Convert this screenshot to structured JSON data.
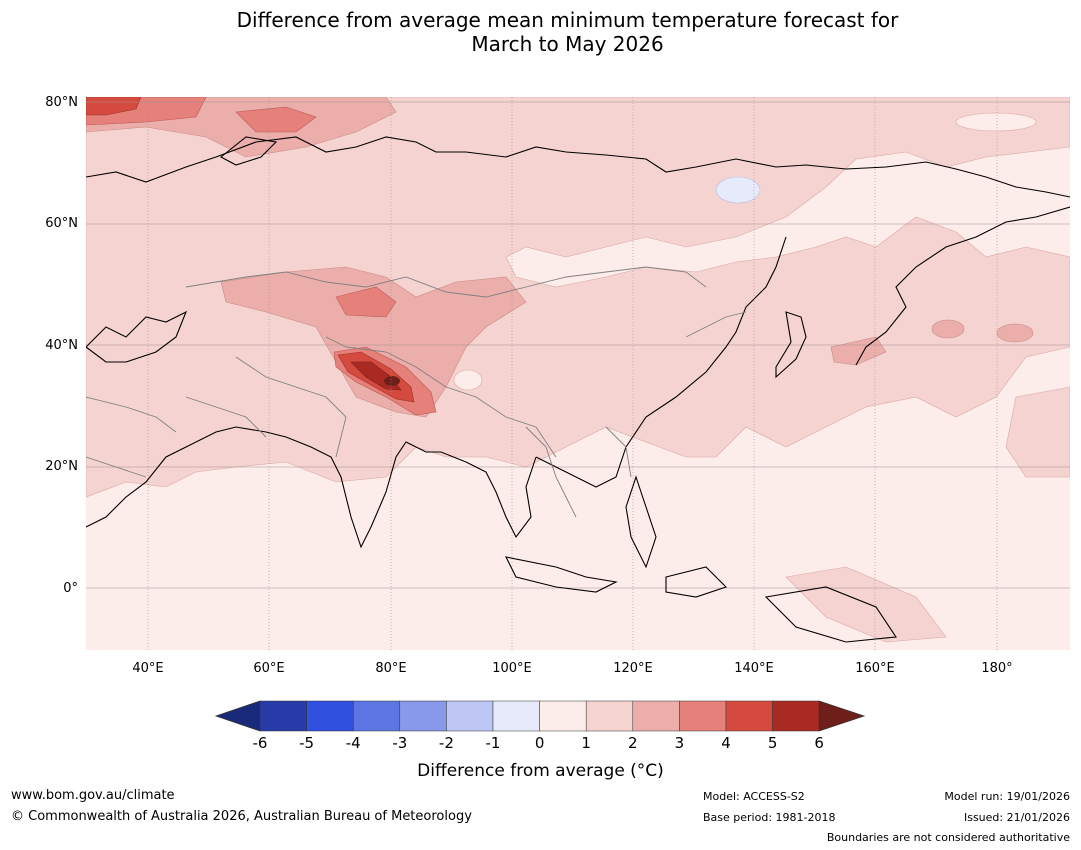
{
  "title": {
    "line1": "Difference from average mean minimum temperature forecast for",
    "line2": "March to May 2026"
  },
  "map": {
    "region": "Asia",
    "lat_labels": [
      "80°N",
      "60°N",
      "40°N",
      "20°N",
      "0°"
    ],
    "lon_labels": [
      "40°E",
      "60°E",
      "80°E",
      "100°E",
      "120°E",
      "140°E",
      "160°E",
      "180°"
    ]
  },
  "colorbar": {
    "ticks": [
      "-6",
      "-5",
      "-4",
      "-3",
      "-2",
      "-1",
      "0",
      "1",
      "2",
      "3",
      "4",
      "5",
      "6"
    ],
    "colors": [
      "#283aa8",
      "#3050e0",
      "#5d75e2",
      "#8898ea",
      "#bec6f4",
      "#e7eafa",
      "#fcecea",
      "#f5d3d1",
      "#ecaeab",
      "#e5807a",
      "#d54a3e",
      "#a92a22"
    ],
    "under_color": "#1a2a7a",
    "over_color": "#6e1f1a",
    "label": "Difference from average (°C)"
  },
  "footer": {
    "website": "www.bom.gov.au/climate",
    "copyright": "© Commonwealth of Australia 2026, Australian Bureau of Meteorology",
    "model": "Model: ACCESS-S2",
    "base_period": "Base period: 1981-2018",
    "model_run": "Model run: 19/01/2026",
    "issued": "Issued: 21/01/2026",
    "disclaimer": "Boundaries are not considered authoritative"
  }
}
